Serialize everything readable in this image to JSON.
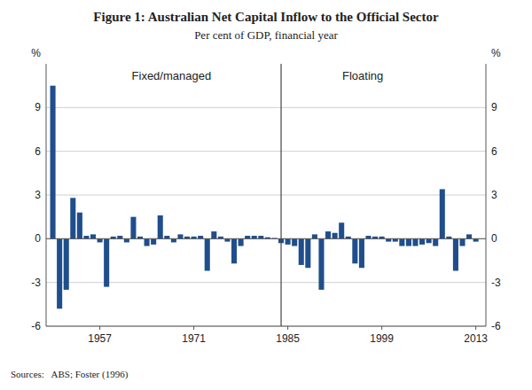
{
  "chart_data": {
    "type": "bar",
    "title": "Figure 1: Australian Net Capital Inflow to the Official Sector",
    "subtitle": "Per cent of GDP, financial year",
    "source": "Sources:   ABS; Foster (1996)",
    "annotations": [
      "Fixed/managed",
      "Floating"
    ],
    "ylabel": "%",
    "y2label": "%",
    "color": "#1f4e8c",
    "grid": true,
    "divider_x": 1984,
    "xlim": [
      1949.0,
      2014.5
    ],
    "xticks": [
      1957,
      1971,
      1985,
      1999,
      2013
    ],
    "ylim": [
      -6,
      12
    ],
    "yticks": [
      -6,
      -3,
      0,
      3,
      6,
      9
    ],
    "y2lim": [
      -6,
      12
    ],
    "y2ticks": [
      -6,
      -3,
      0,
      3,
      6,
      9
    ],
    "x": [
      1950,
      1951,
      1952,
      1953,
      1954,
      1955,
      1956,
      1957,
      1958,
      1959,
      1960,
      1961,
      1962,
      1963,
      1964,
      1965,
      1966,
      1967,
      1968,
      1969,
      1970,
      1971,
      1972,
      1973,
      1974,
      1975,
      1976,
      1977,
      1978,
      1979,
      1980,
      1981,
      1982,
      1983,
      1984,
      1985,
      1986,
      1987,
      1988,
      1989,
      1990,
      1991,
      1992,
      1993,
      1994,
      1995,
      1996,
      1997,
      1998,
      1999,
      2000,
      2001,
      2002,
      2003,
      2004,
      2005,
      2006,
      2007,
      2008,
      2009,
      2010,
      2011,
      2012,
      2013
    ],
    "values": [
      10.5,
      -4.8,
      -3.5,
      2.8,
      1.8,
      0.2,
      0.3,
      -0.25,
      -3.3,
      0.15,
      0.2,
      -0.25,
      1.5,
      0.15,
      -0.5,
      -0.4,
      1.6,
      0.2,
      -0.25,
      0.3,
      0.15,
      0.15,
      0.2,
      -2.2,
      0.5,
      0.15,
      -0.2,
      -1.7,
      -0.5,
      0.2,
      0.2,
      0.2,
      0.1,
      0.05,
      -0.3,
      -0.4,
      -0.5,
      -1.8,
      -2.0,
      0.3,
      -3.5,
      0.5,
      0.4,
      1.1,
      0.15,
      -1.7,
      -2.0,
      0.2,
      0.15,
      0.15,
      -0.2,
      -0.2,
      -0.5,
      -0.5,
      -0.5,
      -0.4,
      -0.3,
      -0.5,
      3.4,
      0.15,
      -2.2,
      -0.5,
      0.3,
      -0.2
    ]
  }
}
